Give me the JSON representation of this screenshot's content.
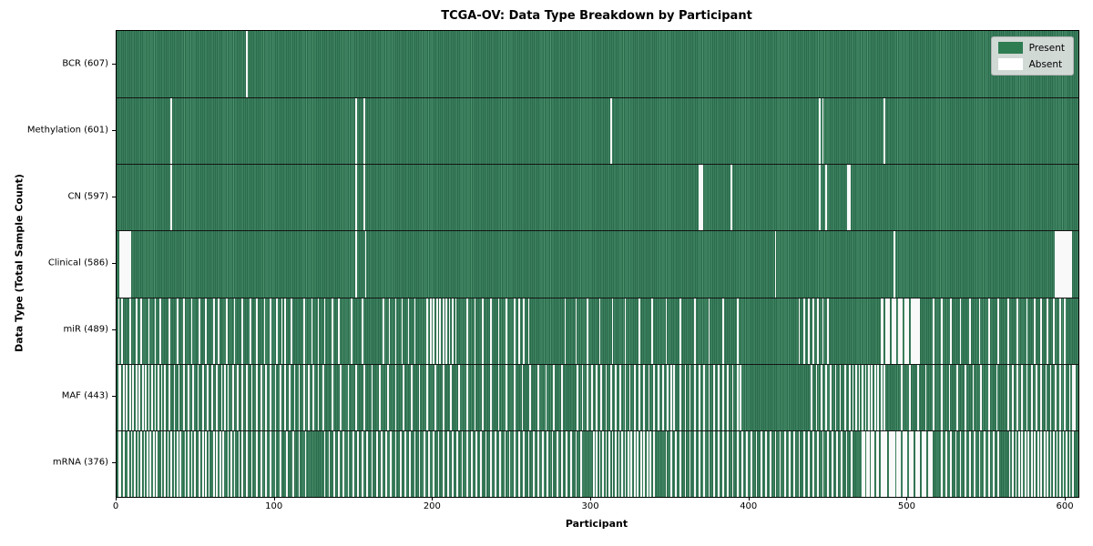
{
  "figure": {
    "title": "TCGA-OV: Data Type Breakdown by Participant",
    "x_axis_label": "Participant",
    "y_axis_label": "Data Type (Total Sample Count)"
  },
  "legend": {
    "items": [
      {
        "label": "Present",
        "color": "#2e7d52"
      },
      {
        "label": "Absent",
        "color": "#ffffff"
      }
    ]
  },
  "colors": {
    "present_dark": "#2a6c4b",
    "present_light": "#4e9270",
    "absent": "#f9f9f9"
  },
  "chart_data": {
    "type": "heatmap",
    "title": "TCGA-OV: Data Type Breakdown by Participant",
    "xlabel": "Participant",
    "ylabel": "Data Type (Total Sample Count)",
    "legend": [
      "Present",
      "Absent"
    ],
    "legend_position": "upper right",
    "grid": false,
    "n_participants": 608,
    "xlim": [
      0,
      608
    ],
    "x_ticks": [
      0,
      100,
      200,
      300,
      400,
      500,
      600
    ],
    "value_encoding": "absent entries are participant indices; [start,length] denotes a run of consecutive absent participants; all other participants are Present",
    "rows": [
      {
        "label": "BCR (607)",
        "name": "BCR",
        "present_count": 607,
        "absent": [
          82
        ]
      },
      {
        "label": "Methylation (601)",
        "name": "Methylation",
        "present_count": 601,
        "absent": [
          34,
          151,
          156,
          312,
          444,
          446,
          485
        ]
      },
      {
        "label": "CN (597)",
        "name": "CN",
        "present_count": 597,
        "absent": [
          34,
          151,
          156,
          [
            368,
            3
          ],
          388,
          444,
          448,
          [
            462,
            2
          ]
        ]
      },
      {
        "label": "Clinical (586)",
        "name": "Clinical",
        "present_count": 586,
        "absent": [
          [
            2,
            7
          ],
          151,
          157,
          416,
          491,
          [
            593,
            11
          ]
        ]
      },
      {
        "label": "miR (489)",
        "name": "miR",
        "present_count": 489,
        "absent": [
          1,
          3,
          8,
          12,
          15,
          20,
          24,
          27,
          33,
          38,
          42,
          47,
          52,
          56,
          61,
          64,
          69,
          74,
          79,
          84,
          88,
          93,
          97,
          101,
          104,
          106,
          110,
          118,
          123,
          127,
          131,
          136,
          140,
          148,
          155,
          168,
          172,
          176,
          180,
          184,
          188,
          196,
          198,
          200,
          202,
          204,
          206,
          208,
          210,
          212,
          214,
          221,
          226,
          231,
          236,
          241,
          246,
          251,
          254,
          257,
          260,
          283,
          290,
          297,
          305,
          313,
          321,
          330,
          338,
          347,
          356,
          365,
          374,
          383,
          392,
          431,
          434,
          437,
          440,
          443,
          446,
          449,
          [
            483,
            2
          ],
          [
            486,
            3
          ],
          [
            490,
            3
          ],
          [
            494,
            3
          ],
          [
            498,
            3
          ],
          [
            502,
            6
          ],
          516,
          521,
          527,
          533,
          539,
          545,
          551,
          557,
          563,
          569,
          575,
          580,
          584,
          588,
          592,
          596,
          599
        ]
      },
      {
        "label": "MAF (443)",
        "name": "MAF",
        "present_count": 443,
        "absent": [
          [
            1,
            2
          ],
          4,
          6,
          8,
          10,
          12,
          14,
          16,
          18,
          20,
          22,
          24,
          26,
          28,
          30,
          33,
          36,
          39,
          42,
          45,
          48,
          51,
          54,
          57,
          60,
          63,
          66,
          68,
          70,
          73,
          76,
          79,
          82,
          85,
          88,
          91,
          94,
          97,
          100,
          103,
          106,
          109,
          112,
          115,
          118,
          121,
          124,
          127,
          130,
          136,
          141,
          146,
          151,
          156,
          161,
          166,
          171,
          176,
          181,
          186,
          191,
          196,
          201,
          206,
          211,
          216,
          221,
          226,
          231,
          236,
          241,
          246,
          251,
          256,
          261,
          266,
          271,
          276,
          281,
          291,
          294,
          297,
          300,
          303,
          306,
          309,
          312,
          315,
          318,
          321,
          324,
          327,
          330,
          333,
          336,
          339,
          342,
          345,
          348,
          350,
          352,
          356,
          359,
          362,
          365,
          368,
          371,
          374,
          377,
          380,
          383,
          386,
          389,
          392,
          394,
          439,
          442,
          445,
          448,
          451,
          454,
          457,
          460,
          463,
          465,
          467,
          469,
          471,
          473,
          475,
          477,
          479,
          481,
          483,
          485,
          496,
          501,
          506,
          511,
          516,
          521,
          526,
          531,
          536,
          541,
          546,
          551,
          556,
          563,
          566,
          569,
          572,
          575,
          578,
          581,
          584,
          587,
          590,
          593,
          596,
          599,
          602,
          [
            604,
            2
          ]
        ]
      },
      {
        "label": "mRNA (376)",
        "name": "mRNA",
        "present_count": 376,
        "absent": [
          [
            1,
            2
          ],
          4,
          7,
          9,
          11,
          13,
          15,
          17,
          19,
          21,
          23,
          25,
          28,
          30,
          32,
          34,
          36,
          38,
          40,
          43,
          45,
          47,
          49,
          52,
          54,
          56,
          58,
          61,
          63,
          65,
          67,
          70,
          72,
          74,
          77,
          79,
          82,
          85,
          88,
          91,
          94,
          97,
          100,
          103,
          107,
          111,
          115,
          119,
          131,
          134,
          137,
          140,
          143,
          146,
          149,
          152,
          155,
          158,
          161,
          164,
          167,
          170,
          173,
          176,
          179,
          182,
          185,
          188,
          191,
          194,
          197,
          200,
          203,
          206,
          209,
          212,
          215,
          218,
          221,
          224,
          227,
          230,
          233,
          236,
          239,
          242,
          245,
          248,
          251,
          254,
          257,
          260,
          263,
          266,
          269,
          272,
          275,
          278,
          281,
          284,
          287,
          290,
          293,
          301,
          303,
          305,
          307,
          309,
          311,
          313,
          315,
          317,
          319,
          321,
          323,
          325,
          327,
          329,
          331,
          333,
          335,
          337,
          339,
          347,
          350,
          353,
          356,
          359,
          362,
          365,
          368,
          371,
          374,
          377,
          380,
          383,
          386,
          389,
          392,
          395,
          398,
          401,
          404,
          407,
          410,
          413,
          416,
          419,
          422,
          425,
          428,
          431,
          434,
          437,
          440,
          443,
          446,
          449,
          452,
          455,
          458,
          461,
          464,
          [
            471,
            2
          ],
          [
            474,
            2
          ],
          [
            477,
            2
          ],
          [
            480,
            2
          ],
          [
            483,
            4
          ],
          [
            488,
            4
          ],
          [
            493,
            3
          ],
          [
            497,
            3
          ],
          [
            501,
            3
          ],
          [
            505,
            3
          ],
          [
            509,
            3
          ],
          [
            513,
            3
          ],
          521,
          524,
          527,
          530,
          533,
          536,
          539,
          542,
          545,
          548,
          551,
          554,
          557,
          564,
          566,
          568,
          570,
          572,
          574,
          576,
          578,
          580,
          582,
          584,
          586,
          588,
          590,
          592,
          594,
          596,
          598,
          600,
          602,
          604
        ]
      }
    ]
  }
}
